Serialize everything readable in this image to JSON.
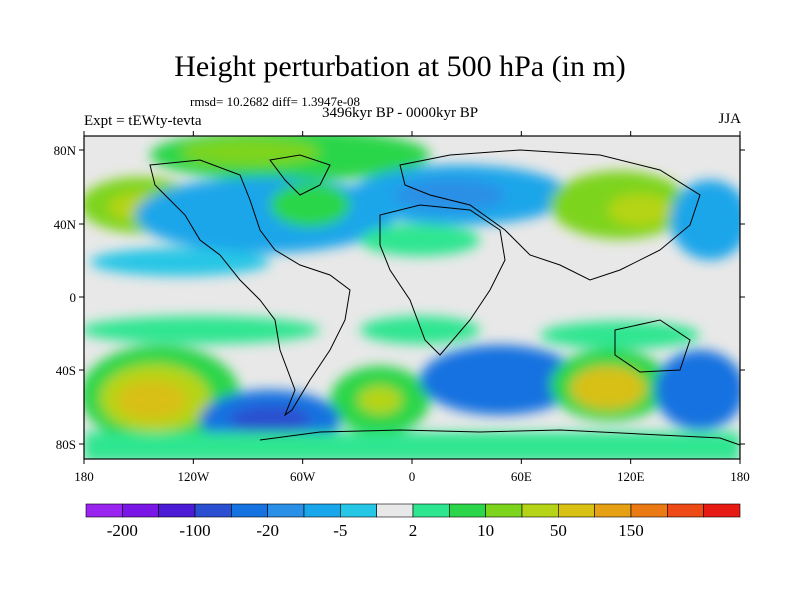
{
  "title": "Height perturbation at 500 hPa (in m)",
  "stats": "rmsd= 10.2682 diff= 1.3947e-08",
  "experiment": "Expt = tEWty-tevta",
  "period": "3496kyr BP - 0000kyr BP",
  "season": "JJA",
  "lat_labels": [
    "80N",
    "40N",
    "0",
    "40S",
    "80S"
  ],
  "lon_labels": [
    "180",
    "120W",
    "60W",
    "0",
    "60E",
    "120E",
    "180"
  ],
  "colorbar": {
    "colors": [
      "#9b25f0",
      "#7a16e6",
      "#4b1bd6",
      "#2a4fd0",
      "#1672e0",
      "#2a8fe6",
      "#1aa6ea",
      "#25c6e6",
      "#e8e8e8",
      "#2ee690",
      "#2bd64a",
      "#7dd41c",
      "#b6d417",
      "#d8c015",
      "#e6a014",
      "#ec7a14",
      "#ee4a16",
      "#e81a14"
    ],
    "labels": [
      "-200",
      "-100",
      "-20",
      "-5",
      "2",
      "10",
      "50",
      "150"
    ]
  },
  "legend": {
    "background_color": "#e8e8e8",
    "coast_color": "#000000"
  }
}
